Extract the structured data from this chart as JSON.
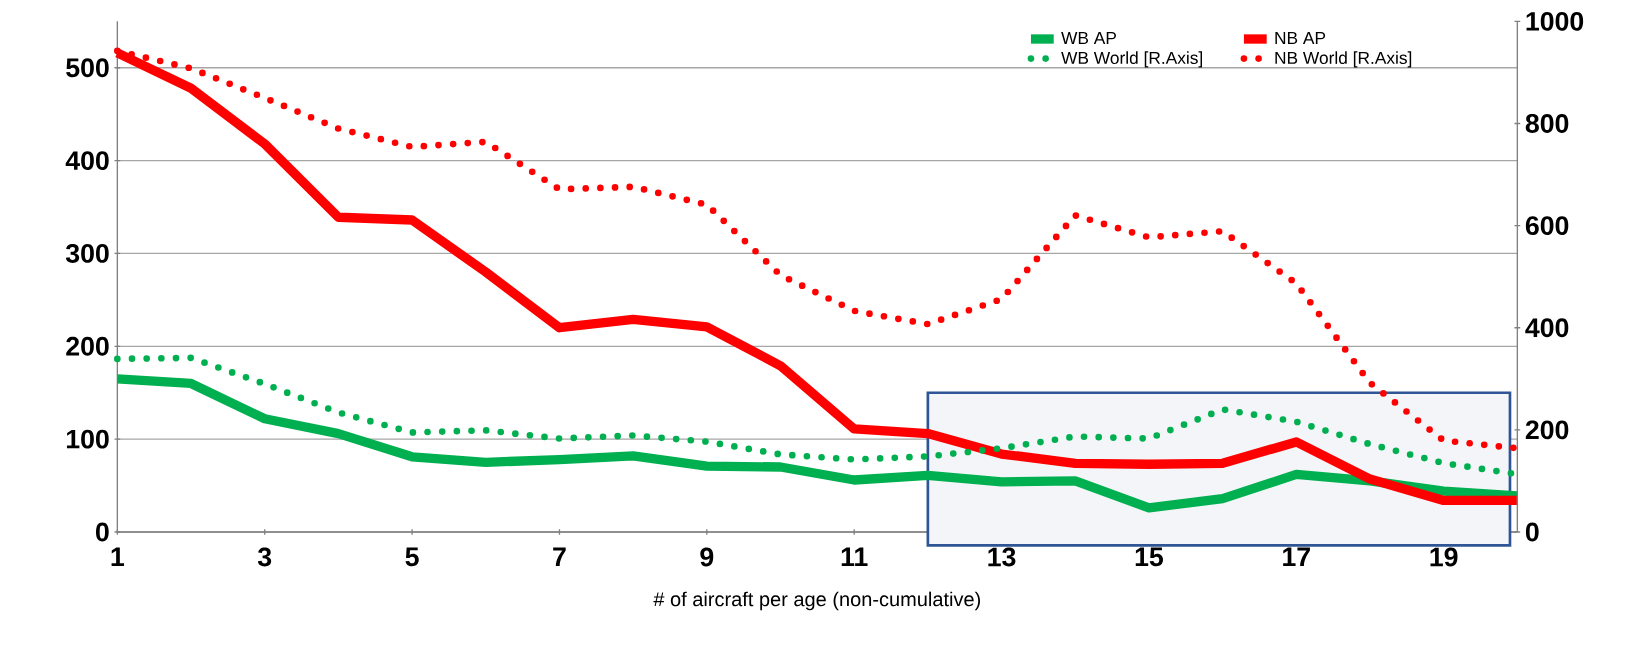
{
  "chart_data": {
    "type": "line",
    "xlabel": "# of aircraft per age (non-cumulative)",
    "x": [
      1,
      2,
      3,
      4,
      5,
      6,
      7,
      8,
      9,
      10,
      11,
      12,
      13,
      14,
      15,
      16,
      17,
      18,
      19,
      20
    ],
    "xlim": [
      1,
      20
    ],
    "xticks": [
      1,
      3,
      5,
      7,
      9,
      11,
      13,
      15,
      17,
      19
    ],
    "ylim": [
      0,
      550
    ],
    "yticks": [
      0,
      100,
      200,
      300,
      400,
      500
    ],
    "y2lim": [
      0,
      1000
    ],
    "y2ticks": [
      0,
      200,
      400,
      600,
      800,
      1000
    ],
    "grid": "y",
    "legend": "top right",
    "marker": "none",
    "series": [
      {
        "name": "WB AP",
        "color": "#00b050",
        "line_style": "solid",
        "values": [
          165,
          160,
          122,
          106,
          81,
          75,
          78,
          82,
          71,
          70,
          56,
          61,
          54,
          55,
          26,
          36,
          62,
          55,
          44,
          39
        ]
      },
      {
        "name": "NB AP",
        "color": "#ff0000",
        "line_style": "solid",
        "values": [
          516,
          478,
          418,
          339,
          336,
          280,
          220,
          229,
          221,
          179,
          111,
          106,
          84,
          74,
          73,
          74,
          97,
          57,
          34,
          34
        ]
      },
      {
        "name": "WB World [R.Axis]",
        "color": "#00b050",
        "line_style": "dotted",
        "axis": "y2",
        "values": [
          339,
          341,
          290,
          234,
          195,
          199,
          183,
          189,
          177,
          152,
          142,
          148,
          164,
          187,
          183,
          240,
          216,
          172,
          135,
          113
        ]
      },
      {
        "name": "NB World [R.Axis]",
        "color": "#ff0000",
        "line_style": "dotted",
        "axis": "y2",
        "values": [
          942,
          908,
          850,
          790,
          754,
          764,
          671,
          676,
          641,
          503,
          433,
          407,
          456,
          620,
          577,
          589,
          487,
          292,
          179,
          164
        ]
      }
    ],
    "bands": [
      {
        "axis": "x",
        "from": 12,
        "to": 19.9,
        "color": "#2f5597"
      }
    ]
  }
}
